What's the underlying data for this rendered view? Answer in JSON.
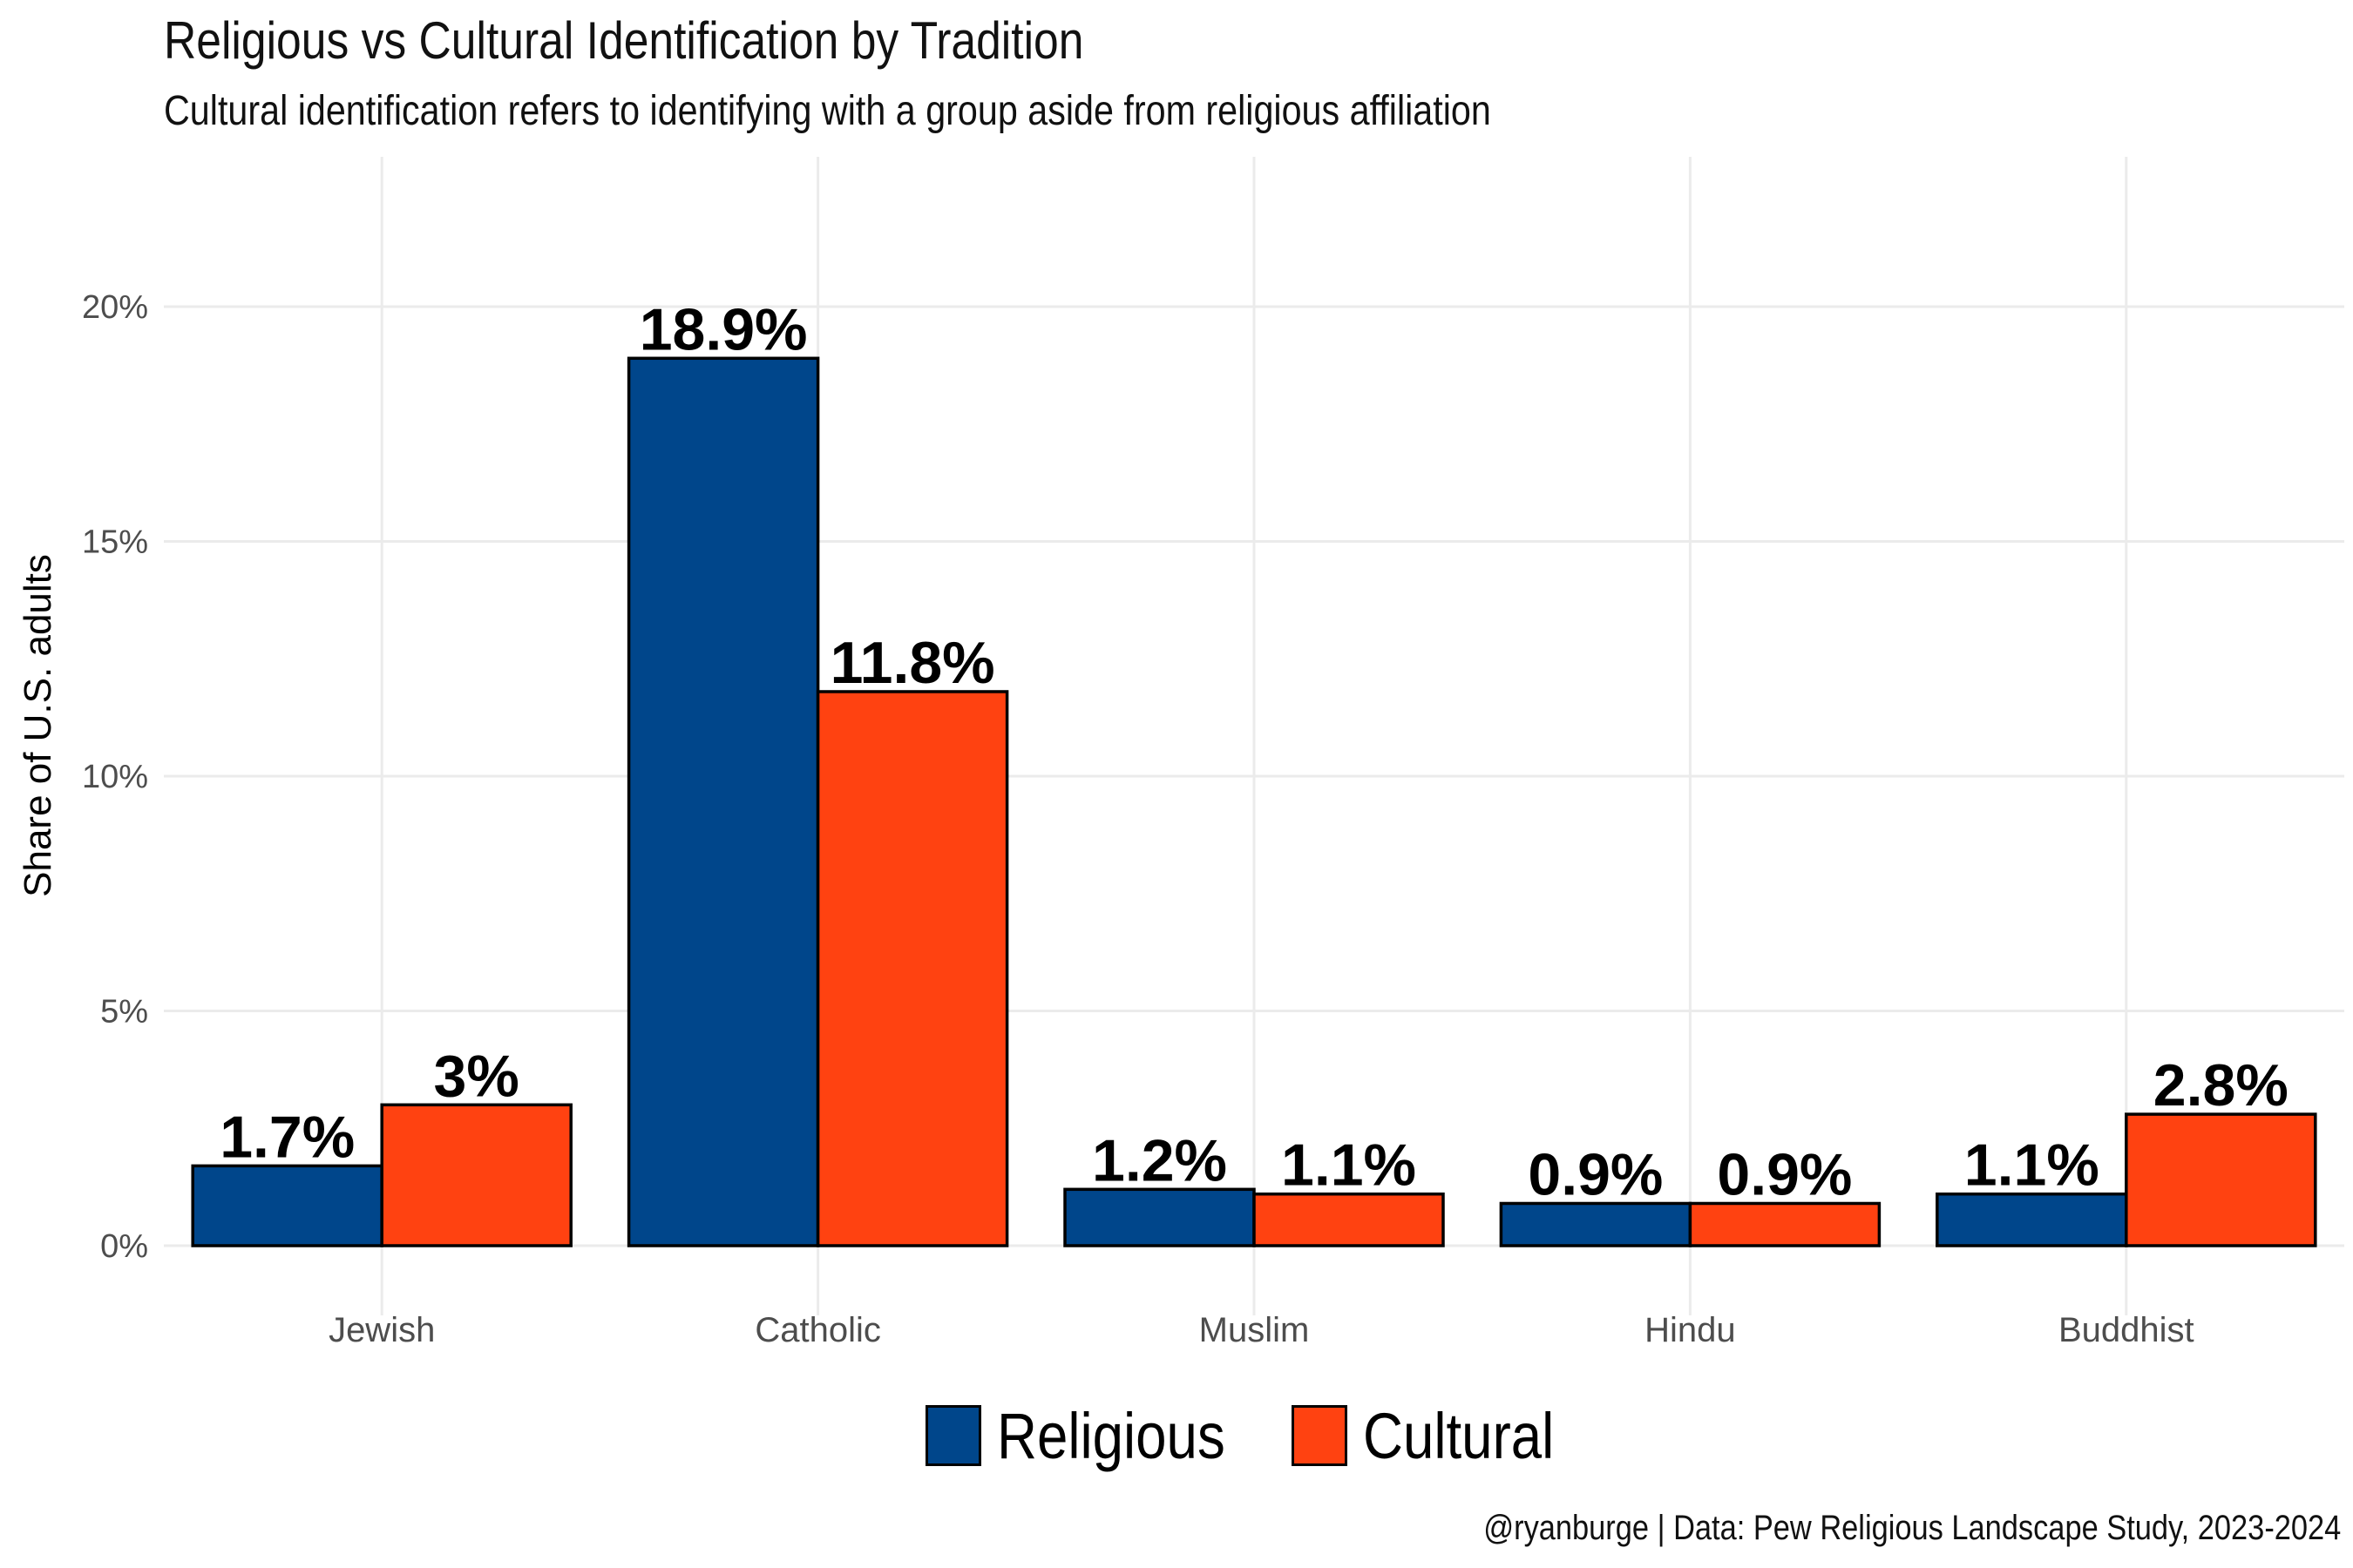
{
  "chart_data": {
    "type": "bar",
    "title": "Religious vs Cultural Identification by Tradition",
    "subtitle": "Cultural identification refers to identifying with a group aside from religious affiliation",
    "caption": "@ryanburge | Data: Pew Religious Landscape Study, 2023-2024",
    "xlabel": "",
    "ylabel": "Share of U.S. adults",
    "categories": [
      "Jewish",
      "Catholic",
      "Muslim",
      "Hindu",
      "Buddhist"
    ],
    "series": [
      {
        "name": "Religious",
        "color": "#00468b",
        "values": [
          1.7,
          18.9,
          1.2,
          0.9,
          1.1
        ],
        "labels": [
          "1.7%",
          "18.9%",
          "1.2%",
          "0.9%",
          "1.1%"
        ]
      },
      {
        "name": "Cultural",
        "color": "#ff4211",
        "values": [
          3.0,
          11.8,
          1.1,
          0.9,
          2.8
        ],
        "labels": [
          "3%",
          "11.8%",
          "1.1%",
          "0.9%",
          "2.8%"
        ]
      }
    ],
    "ylim": [
      0,
      22
    ],
    "yticks": [
      0,
      5,
      10,
      15,
      20
    ],
    "ytick_labels": [
      "0%",
      "5%",
      "10%",
      "15%",
      "20%"
    ],
    "grid": true,
    "legend_position": "bottom"
  }
}
